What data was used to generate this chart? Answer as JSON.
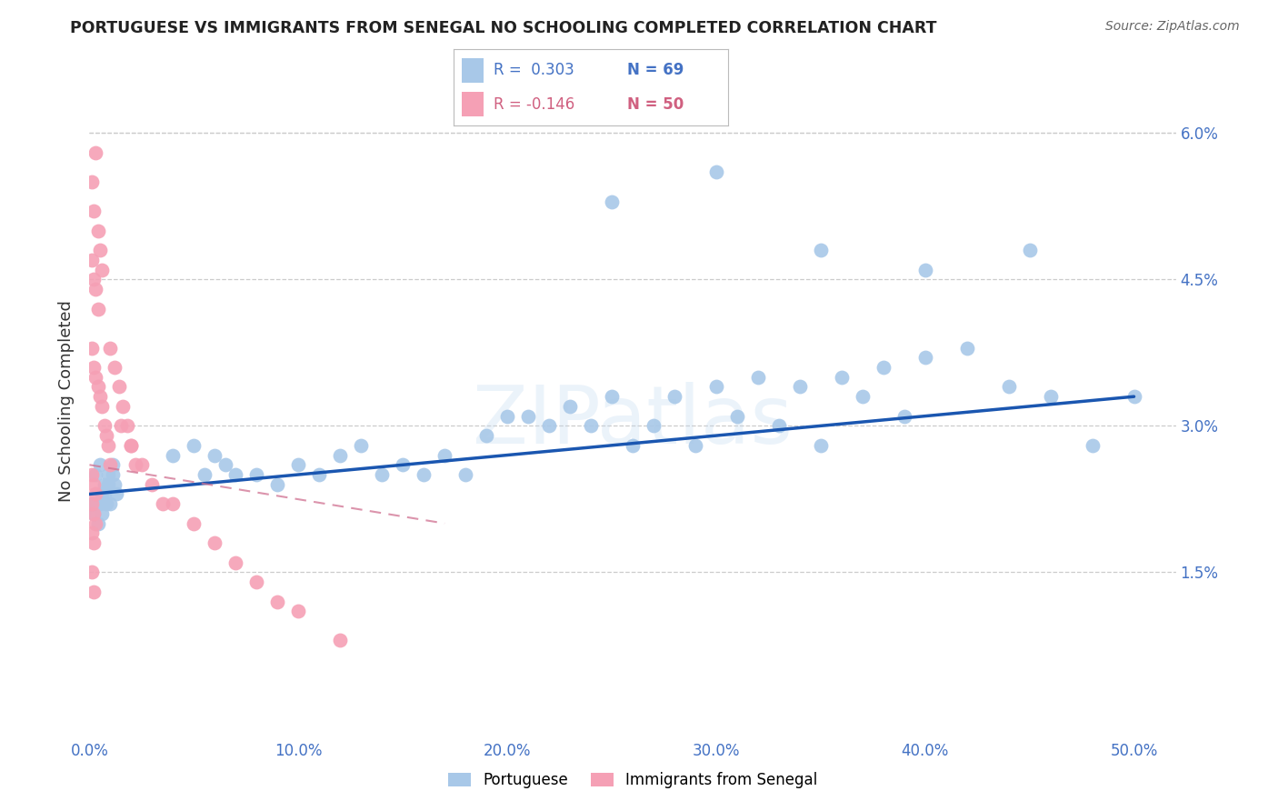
{
  "title": "PORTUGUESE VS IMMIGRANTS FROM SENEGAL NO SCHOOLING COMPLETED CORRELATION CHART",
  "source": "Source: ZipAtlas.com",
  "ylabel": "No Schooling Completed",
  "yticks": [
    0.0,
    0.015,
    0.03,
    0.045,
    0.06
  ],
  "ytick_labels": [
    "",
    "1.5%",
    "3.0%",
    "4.5%",
    "6.0%"
  ],
  "xlim": [
    0.0,
    0.52
  ],
  "ylim": [
    -0.002,
    0.067
  ],
  "legend_r1": "R =  0.303",
  "legend_n1": "N = 69",
  "legend_r2": "R = -0.146",
  "legend_n2": "N = 50",
  "color_blue": "#a8c8e8",
  "color_pink": "#f5a0b5",
  "line_blue": "#1a56b0",
  "line_pink": "#d07090",
  "watermark": "ZIPatlas",
  "blue_x": [
    0.001,
    0.002,
    0.003,
    0.004,
    0.005,
    0.006,
    0.007,
    0.008,
    0.009,
    0.01,
    0.011,
    0.012,
    0.013,
    0.003,
    0.005,
    0.007,
    0.009,
    0.011,
    0.004,
    0.006,
    0.04,
    0.05,
    0.055,
    0.06,
    0.065,
    0.07,
    0.08,
    0.09,
    0.1,
    0.11,
    0.12,
    0.13,
    0.14,
    0.15,
    0.16,
    0.17,
    0.18,
    0.19,
    0.2,
    0.21,
    0.22,
    0.23,
    0.24,
    0.25,
    0.26,
    0.27,
    0.28,
    0.29,
    0.3,
    0.31,
    0.32,
    0.33,
    0.34,
    0.35,
    0.36,
    0.37,
    0.38,
    0.39,
    0.4,
    0.42,
    0.44,
    0.46,
    0.48,
    0.5,
    0.25,
    0.3,
    0.35,
    0.4,
    0.45
  ],
  "blue_y": [
    0.022,
    0.021,
    0.022,
    0.02,
    0.022,
    0.021,
    0.023,
    0.022,
    0.024,
    0.022,
    0.025,
    0.024,
    0.023,
    0.025,
    0.026,
    0.024,
    0.025,
    0.026,
    0.022,
    0.023,
    0.027,
    0.028,
    0.025,
    0.027,
    0.026,
    0.025,
    0.025,
    0.024,
    0.026,
    0.025,
    0.027,
    0.028,
    0.025,
    0.026,
    0.025,
    0.027,
    0.025,
    0.029,
    0.031,
    0.031,
    0.03,
    0.032,
    0.03,
    0.033,
    0.028,
    0.03,
    0.033,
    0.028,
    0.034,
    0.031,
    0.035,
    0.03,
    0.034,
    0.028,
    0.035,
    0.033,
    0.036,
    0.031,
    0.037,
    0.038,
    0.034,
    0.033,
    0.028,
    0.033,
    0.053,
    0.056,
    0.048,
    0.046,
    0.048
  ],
  "pink_x": [
    0.001,
    0.002,
    0.003,
    0.004,
    0.005,
    0.006,
    0.001,
    0.002,
    0.003,
    0.004,
    0.001,
    0.002,
    0.003,
    0.004,
    0.005,
    0.006,
    0.007,
    0.008,
    0.009,
    0.01,
    0.001,
    0.002,
    0.003,
    0.001,
    0.002,
    0.003,
    0.001,
    0.002,
    0.04,
    0.05,
    0.06,
    0.07,
    0.08,
    0.09,
    0.1,
    0.12,
    0.015,
    0.02,
    0.025,
    0.03,
    0.035,
    0.01,
    0.012,
    0.014,
    0.016,
    0.018,
    0.02,
    0.022,
    0.001,
    0.002
  ],
  "pink_y": [
    0.055,
    0.052,
    0.058,
    0.05,
    0.048,
    0.046,
    0.047,
    0.045,
    0.044,
    0.042,
    0.038,
    0.036,
    0.035,
    0.034,
    0.033,
    0.032,
    0.03,
    0.029,
    0.028,
    0.026,
    0.025,
    0.024,
    0.023,
    0.022,
    0.021,
    0.02,
    0.019,
    0.018,
    0.022,
    0.02,
    0.018,
    0.016,
    0.014,
    0.012,
    0.011,
    0.008,
    0.03,
    0.028,
    0.026,
    0.024,
    0.022,
    0.038,
    0.036,
    0.034,
    0.032,
    0.03,
    0.028,
    0.026,
    0.015,
    0.013
  ],
  "blue_line_x": [
    0.0,
    0.5
  ],
  "blue_line_y": [
    0.023,
    0.033
  ],
  "pink_line_x": [
    0.0,
    0.17
  ],
  "pink_line_y": [
    0.026,
    0.02
  ]
}
